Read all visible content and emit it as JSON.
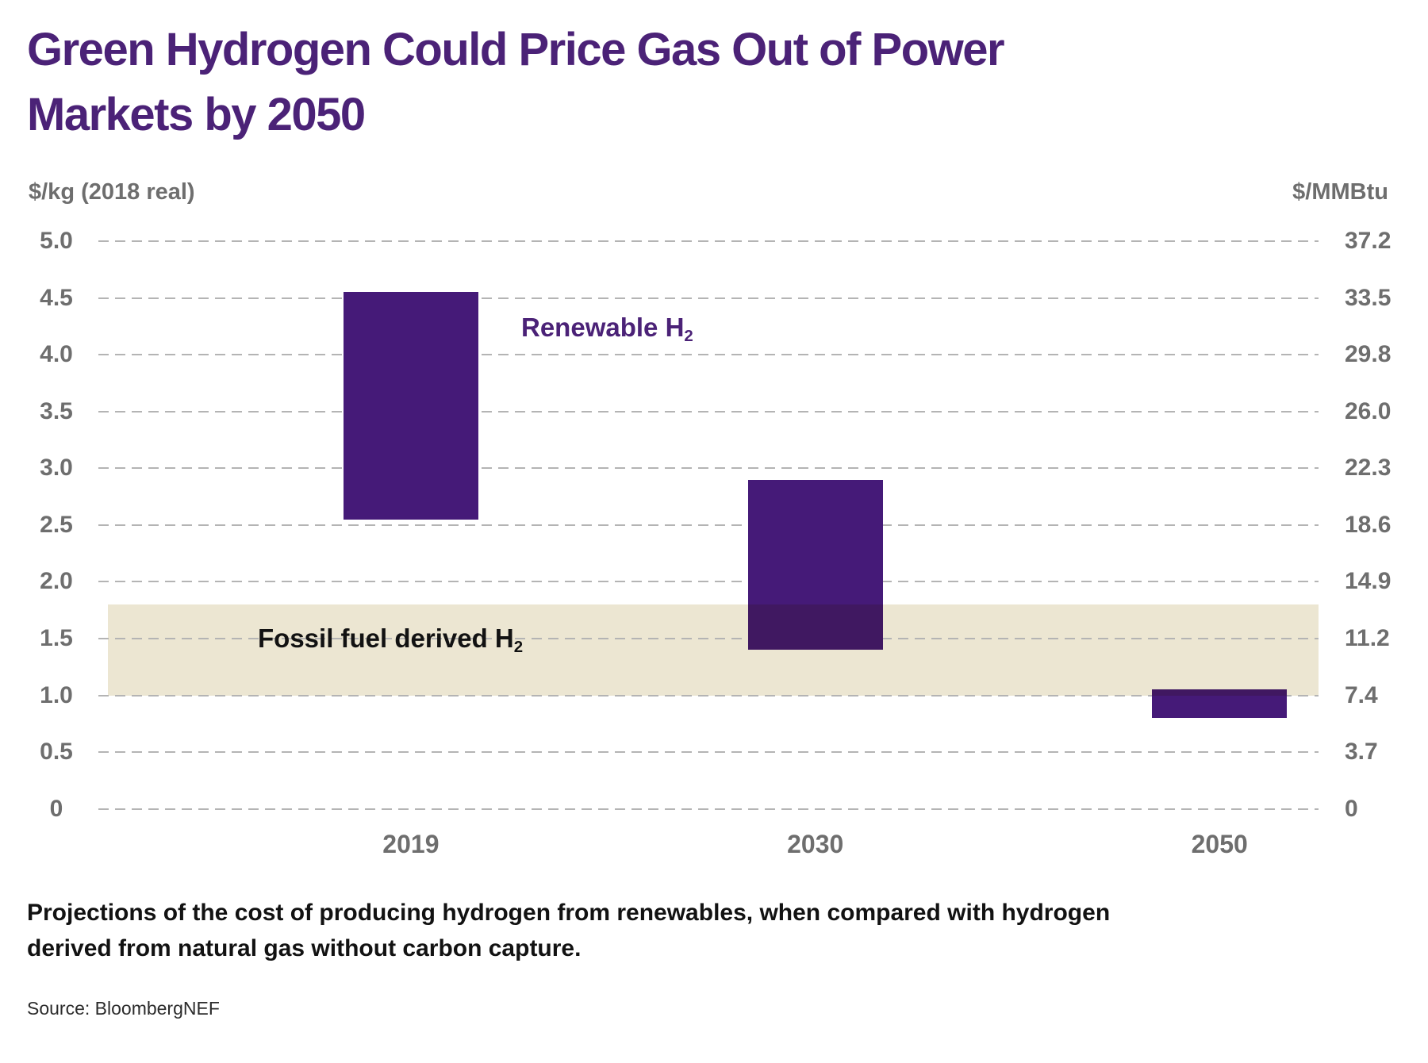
{
  "title": {
    "line1": "Green Hydrogen Could Price Gas Out of Power",
    "line2": "Markets by 2050"
  },
  "chart_data": {
    "type": "bar",
    "subtype": "floating-range-columns",
    "categories": [
      "2019",
      "2030",
      "2050"
    ],
    "series": [
      {
        "name": "Renewable H2 production cost range",
        "unit": "$/kg (2018 real)",
        "values": [
          [
            2.55,
            4.55
          ],
          [
            1.4,
            2.9
          ],
          [
            0.8,
            1.05
          ]
        ]
      }
    ],
    "band": {
      "name": "Fossil fuel derived H2 cost range",
      "unit": "$/kg (2018 real)",
      "range": [
        1.0,
        1.8
      ]
    },
    "left_axis": {
      "label": "$/kg (2018 real)",
      "ticks": [
        "5.0",
        "4.5",
        "4.0",
        "3.5",
        "3.0",
        "2.5",
        "2.0",
        "1.5",
        "1.0",
        "0.5",
        "0"
      ],
      "lim": [
        0,
        5.0
      ]
    },
    "right_axis": {
      "label": "$/MMBtu",
      "ticks": [
        "37.2",
        "33.5",
        "29.8",
        "26.0",
        "22.3",
        "18.6",
        "14.9",
        "11.2",
        "7.4",
        "3.7",
        "0"
      ],
      "lim": [
        0,
        37.2
      ]
    },
    "grid": "horizontal-dashed",
    "legend_position": "none",
    "annotations": [
      {
        "text": "Renewable H",
        "sub": "2"
      },
      {
        "text": "Fossil fuel derived H",
        "sub": "2"
      }
    ]
  },
  "caption": {
    "line1": "Projections of the cost of producing hydrogen from renewables, when compared with hydrogen",
    "line2": "derived from natural gas without carbon capture."
  },
  "source": "Source: BloombergNEF",
  "colors": {
    "bar_purple": "#451a78",
    "overlap_purple": "#401861",
    "band_beige": "#ece6d2",
    "title_purple": "#4b2277",
    "axis_gray": "#6e6e6e",
    "grid_gray": "#b4b4b4",
    "text_black": "#121212"
  }
}
